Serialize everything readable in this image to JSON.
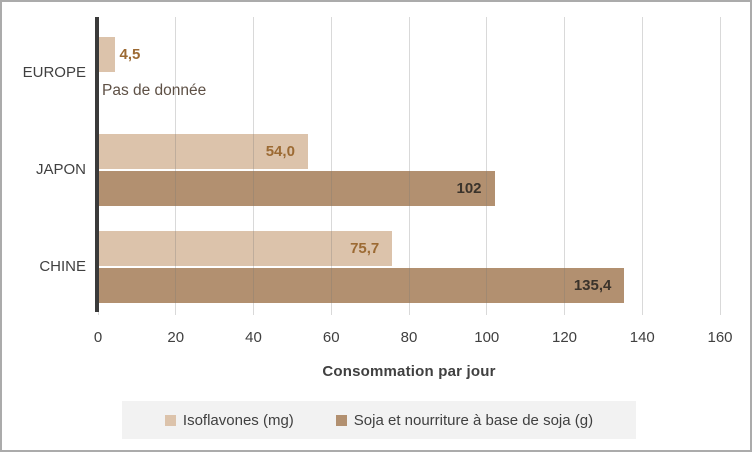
{
  "window": {
    "background": "#ffffff",
    "border_color": "#ababab"
  },
  "chart_data": {
    "type": "bar",
    "orientation": "horizontal",
    "xlabel": "Consommation par jour",
    "xlim": [
      0,
      160
    ],
    "xticks": [
      "0",
      "20",
      "40",
      "60",
      "80",
      "100",
      "120",
      "140",
      "160"
    ],
    "grid": true,
    "legend_position": "bottom",
    "categories": [
      "EUROPE",
      "JAPON",
      "CHINE"
    ],
    "series": [
      {
        "key": "isoflavones",
        "name": "Isoflavones (mg)",
        "color": "#dcc3ab",
        "label_color": "#9c6a33",
        "values": [
          4.5,
          54.0,
          75.7
        ],
        "value_labels": [
          "4,5",
          "54,0",
          "75,7"
        ]
      },
      {
        "key": "soja",
        "name": "Soja et nourriture à base de soja (g)",
        "color": "#b29070",
        "label_color": "#3a332b",
        "values": [
          null,
          102,
          135.4
        ],
        "value_labels": [
          null,
          "102",
          "135,4"
        ]
      }
    ],
    "no_data_label": "Pas de donnée",
    "axis_color": "#3a3a3a",
    "gridline_color": "#dddddd",
    "text_color": "#404040",
    "legend_background": "#f2f2f2"
  }
}
